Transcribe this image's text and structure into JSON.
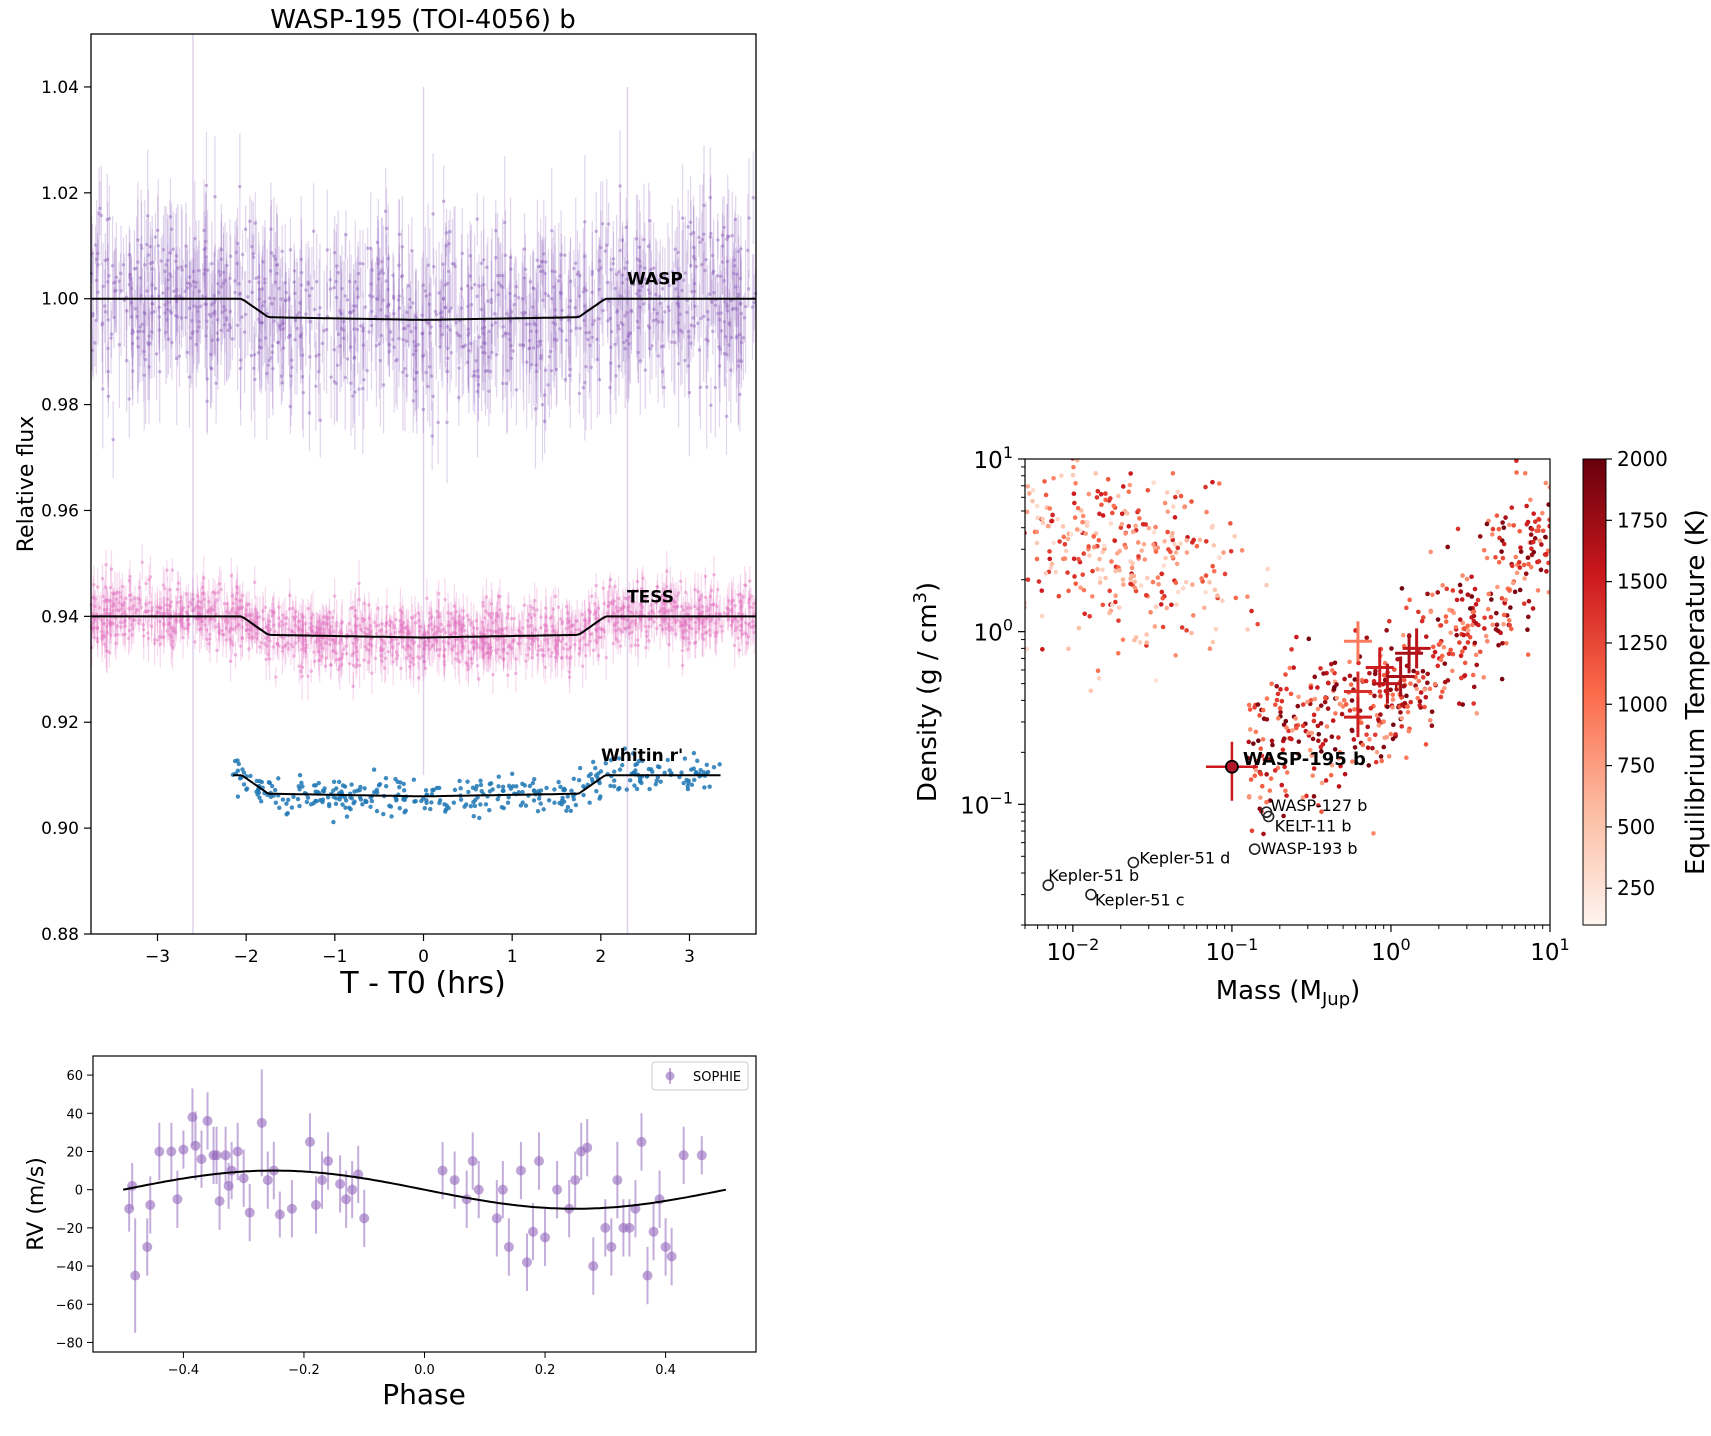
{
  "chart_data": [
    {
      "type": "line",
      "title": "WASP-195 (TOI-4056) b",
      "xlabel": "T - T0 (hrs)",
      "ylabel": "Relative flux",
      "xlim": [
        -3.75,
        3.75
      ],
      "ylim": [
        0.88,
        1.05
      ],
      "xticks": [
        -3,
        -2,
        -1,
        0,
        1,
        2,
        3
      ],
      "xtick_labels": [
        "−3",
        "−2",
        "−1",
        "0",
        "1",
        "2",
        "3"
      ],
      "yticks": [
        0.88,
        0.9,
        0.92,
        0.94,
        0.96,
        0.98,
        1.0,
        1.02,
        1.04
      ],
      "ytick_labels": [
        "0.88",
        "0.90",
        "0.92",
        "0.94",
        "0.96",
        "0.98",
        "1.00",
        "1.02",
        "1.04"
      ],
      "grid": false,
      "colors": {
        "WASP": "#9467bd",
        "TESS": "#e377c2",
        "Whitin r'": "#1f77b4",
        "model": "#000000"
      },
      "series": [
        {
          "name": "WASP",
          "offset": 1.0,
          "depth": 0.004,
          "x_range": [
            -3.75,
            3.75
          ],
          "scatter": 0.008,
          "model_x": [
            -3.75,
            -2.05,
            -1.75,
            0,
            1.75,
            2.05,
            3.75
          ],
          "model_y": [
            1.0,
            1.0,
            0.9965,
            0.996,
            0.9965,
            1.0,
            1.0
          ]
        },
        {
          "name": "TESS",
          "offset": 0.94,
          "depth": 0.004,
          "x_range": [
            -3.75,
            3.75
          ],
          "scatter": 0.003,
          "model_x": [
            -3.75,
            -2.05,
            -1.75,
            0,
            1.75,
            2.05,
            3.75
          ],
          "model_y": [
            0.94,
            0.94,
            0.9365,
            0.936,
            0.9365,
            0.94,
            0.94
          ]
        },
        {
          "name": "Whitin r'",
          "offset": 0.91,
          "depth": 0.004,
          "x_range": [
            -2.15,
            3.35
          ],
          "scatter": 0.0018,
          "model_x": [
            -2.15,
            -2.05,
            -1.75,
            0,
            1.75,
            2.05,
            3.35
          ],
          "model_y": [
            0.91,
            0.91,
            0.9065,
            0.906,
            0.9065,
            0.91,
            0.91
          ]
        }
      ]
    },
    {
      "type": "scatter",
      "title": "",
      "xlabel": "Phase",
      "ylabel": "RV (m/s)",
      "xlim": [
        -0.55,
        0.55
      ],
      "ylim": [
        -85,
        70
      ],
      "xticks": [
        -0.4,
        -0.2,
        0.0,
        0.2,
        0.4
      ],
      "xtick_labels": [
        "−0.4",
        "−0.2",
        "0.0",
        "0.2",
        "0.4"
      ],
      "yticks": [
        -80,
        -60,
        -40,
        -20,
        0,
        20,
        40,
        60
      ],
      "ytick_labels": [
        "−80",
        "−60",
        "−40",
        "−20",
        "0",
        "20",
        "40",
        "60"
      ],
      "legend": {
        "position": "top-right",
        "entries": [
          "SOPHIE"
        ]
      },
      "colors": {
        "SOPHIE": "#9467bd",
        "model": "#000000"
      },
      "model": {
        "amplitude": 10,
        "x_range": [
          -0.5,
          0.5
        ]
      },
      "series": [
        {
          "name": "SOPHIE",
          "x": [
            -0.49,
            -0.485,
            -0.48,
            -0.46,
            -0.455,
            -0.44,
            -0.42,
            -0.41,
            -0.4,
            -0.385,
            -0.38,
            -0.37,
            -0.36,
            -0.35,
            -0.345,
            -0.34,
            -0.33,
            -0.325,
            -0.32,
            -0.31,
            -0.3,
            -0.29,
            -0.27,
            -0.26,
            -0.25,
            -0.24,
            -0.22,
            -0.19,
            -0.18,
            -0.17,
            -0.16,
            -0.14,
            -0.13,
            -0.12,
            -0.11,
            -0.1,
            0.03,
            0.05,
            0.07,
            0.08,
            0.09,
            0.12,
            0.13,
            0.14,
            0.16,
            0.17,
            0.18,
            0.19,
            0.2,
            0.22,
            0.24,
            0.25,
            0.26,
            0.27,
            0.28,
            0.3,
            0.31,
            0.32,
            0.33,
            0.34,
            0.35,
            0.36,
            0.37,
            0.38,
            0.39,
            0.4,
            0.41,
            0.43,
            0.46
          ],
          "y": [
            -10,
            2,
            -45,
            -30,
            -8,
            20,
            20,
            -5,
            21,
            38,
            23,
            16,
            36,
            18,
            18,
            -6,
            18,
            2,
            10,
            20,
            6,
            -12,
            35,
            5,
            10,
            -13,
            -10,
            25,
            -8,
            5,
            15,
            3,
            -5,
            0,
            8,
            -15,
            10,
            5,
            -5,
            15,
            0,
            -15,
            0,
            -30,
            10,
            -38,
            -22,
            15,
            -25,
            0,
            -10,
            5,
            20,
            22,
            -40,
            -20,
            -30,
            5,
            -20,
            -20,
            -10,
            25,
            -45,
            -22,
            -5,
            -30,
            -35,
            18,
            18
          ],
          "err": [
            12,
            12,
            30,
            15,
            15,
            15,
            15,
            15,
            10,
            15,
            18,
            15,
            15,
            15,
            15,
            15,
            15,
            12,
            15,
            15,
            15,
            15,
            28,
            15,
            15,
            12,
            15,
            15,
            15,
            15,
            15,
            15,
            15,
            15,
            15,
            15,
            15,
            15,
            15,
            15,
            15,
            20,
            15,
            15,
            15,
            15,
            15,
            15,
            15,
            15,
            15,
            15,
            15,
            15,
            15,
            15,
            15,
            20,
            15,
            15,
            15,
            15,
            15,
            15,
            15,
            15,
            15,
            15,
            10
          ]
        }
      ]
    },
    {
      "type": "scatter",
      "title": "",
      "xlabel": "Mass (M",
      "xlabel_sub": "Jup",
      "xlabel_end": ")",
      "ylabel": "Density (g / cm",
      "ylabel_sup": "3",
      "ylabel_end": ")",
      "x_scale": "log",
      "y_scale": "log",
      "xlim": [
        0.005,
        10
      ],
      "ylim": [
        0.02,
        10
      ],
      "xticks": [
        0.01,
        0.1,
        1,
        10
      ],
      "xtick_base": [
        "10",
        "10",
        "10",
        "10"
      ],
      "xtick_exp": [
        "−2",
        "−1",
        "0",
        "1"
      ],
      "yticks": [
        0.1,
        1,
        10
      ],
      "ytick_base": [
        "10",
        "10",
        "10"
      ],
      "ytick_exp": [
        "−1",
        "0",
        "1"
      ],
      "colorbar": {
        "label": "Equilibrium Temperature (K)",
        "range": [
          100,
          2000
        ],
        "ticks": [
          250,
          500,
          750,
          1000,
          1250,
          1500,
          1750,
          2000
        ],
        "tick_labels": [
          "250",
          "500",
          "750",
          "1000",
          "1250",
          "1500",
          "1750",
          "2000"
        ],
        "colormap": "Reds",
        "colors": [
          "#fff5f0",
          "#fcbba1",
          "#fb6a4a",
          "#cb181d",
          "#67000d"
        ]
      },
      "highlight": {
        "name": "WASP-195 b",
        "mass": 0.1,
        "density": 0.165,
        "teq": 1500
      },
      "labeled_planets": [
        {
          "name": "WASP-127 b",
          "mass": 0.165,
          "density": 0.09
        },
        {
          "name": "KELT-11 b",
          "mass": 0.17,
          "density": 0.085
        },
        {
          "name": "WASP-193 b",
          "mass": 0.139,
          "density": 0.055
        },
        {
          "name": "Kepler-51 d",
          "mass": 0.024,
          "density": 0.046
        },
        {
          "name": "Kepler-51 b",
          "mass": 0.007,
          "density": 0.034
        },
        {
          "name": "Kepler-51 c",
          "mass": 0.013,
          "density": 0.03
        }
      ],
      "errorbar_planets": [
        {
          "mass": 0.62,
          "density": 0.88,
          "teq": 950
        },
        {
          "mass": 0.62,
          "density": 0.45,
          "teq": 1400
        },
        {
          "mass": 0.62,
          "density": 0.32,
          "teq": 1500
        },
        {
          "mass": 0.85,
          "density": 0.62,
          "teq": 1500
        },
        {
          "mass": 0.95,
          "density": 0.5,
          "teq": 1600
        },
        {
          "mass": 1.15,
          "density": 0.55,
          "teq": 1700
        },
        {
          "mass": 1.3,
          "density": 0.75,
          "teq": 1700
        },
        {
          "mass": 1.45,
          "density": 0.8,
          "teq": 1600
        }
      ]
    }
  ]
}
